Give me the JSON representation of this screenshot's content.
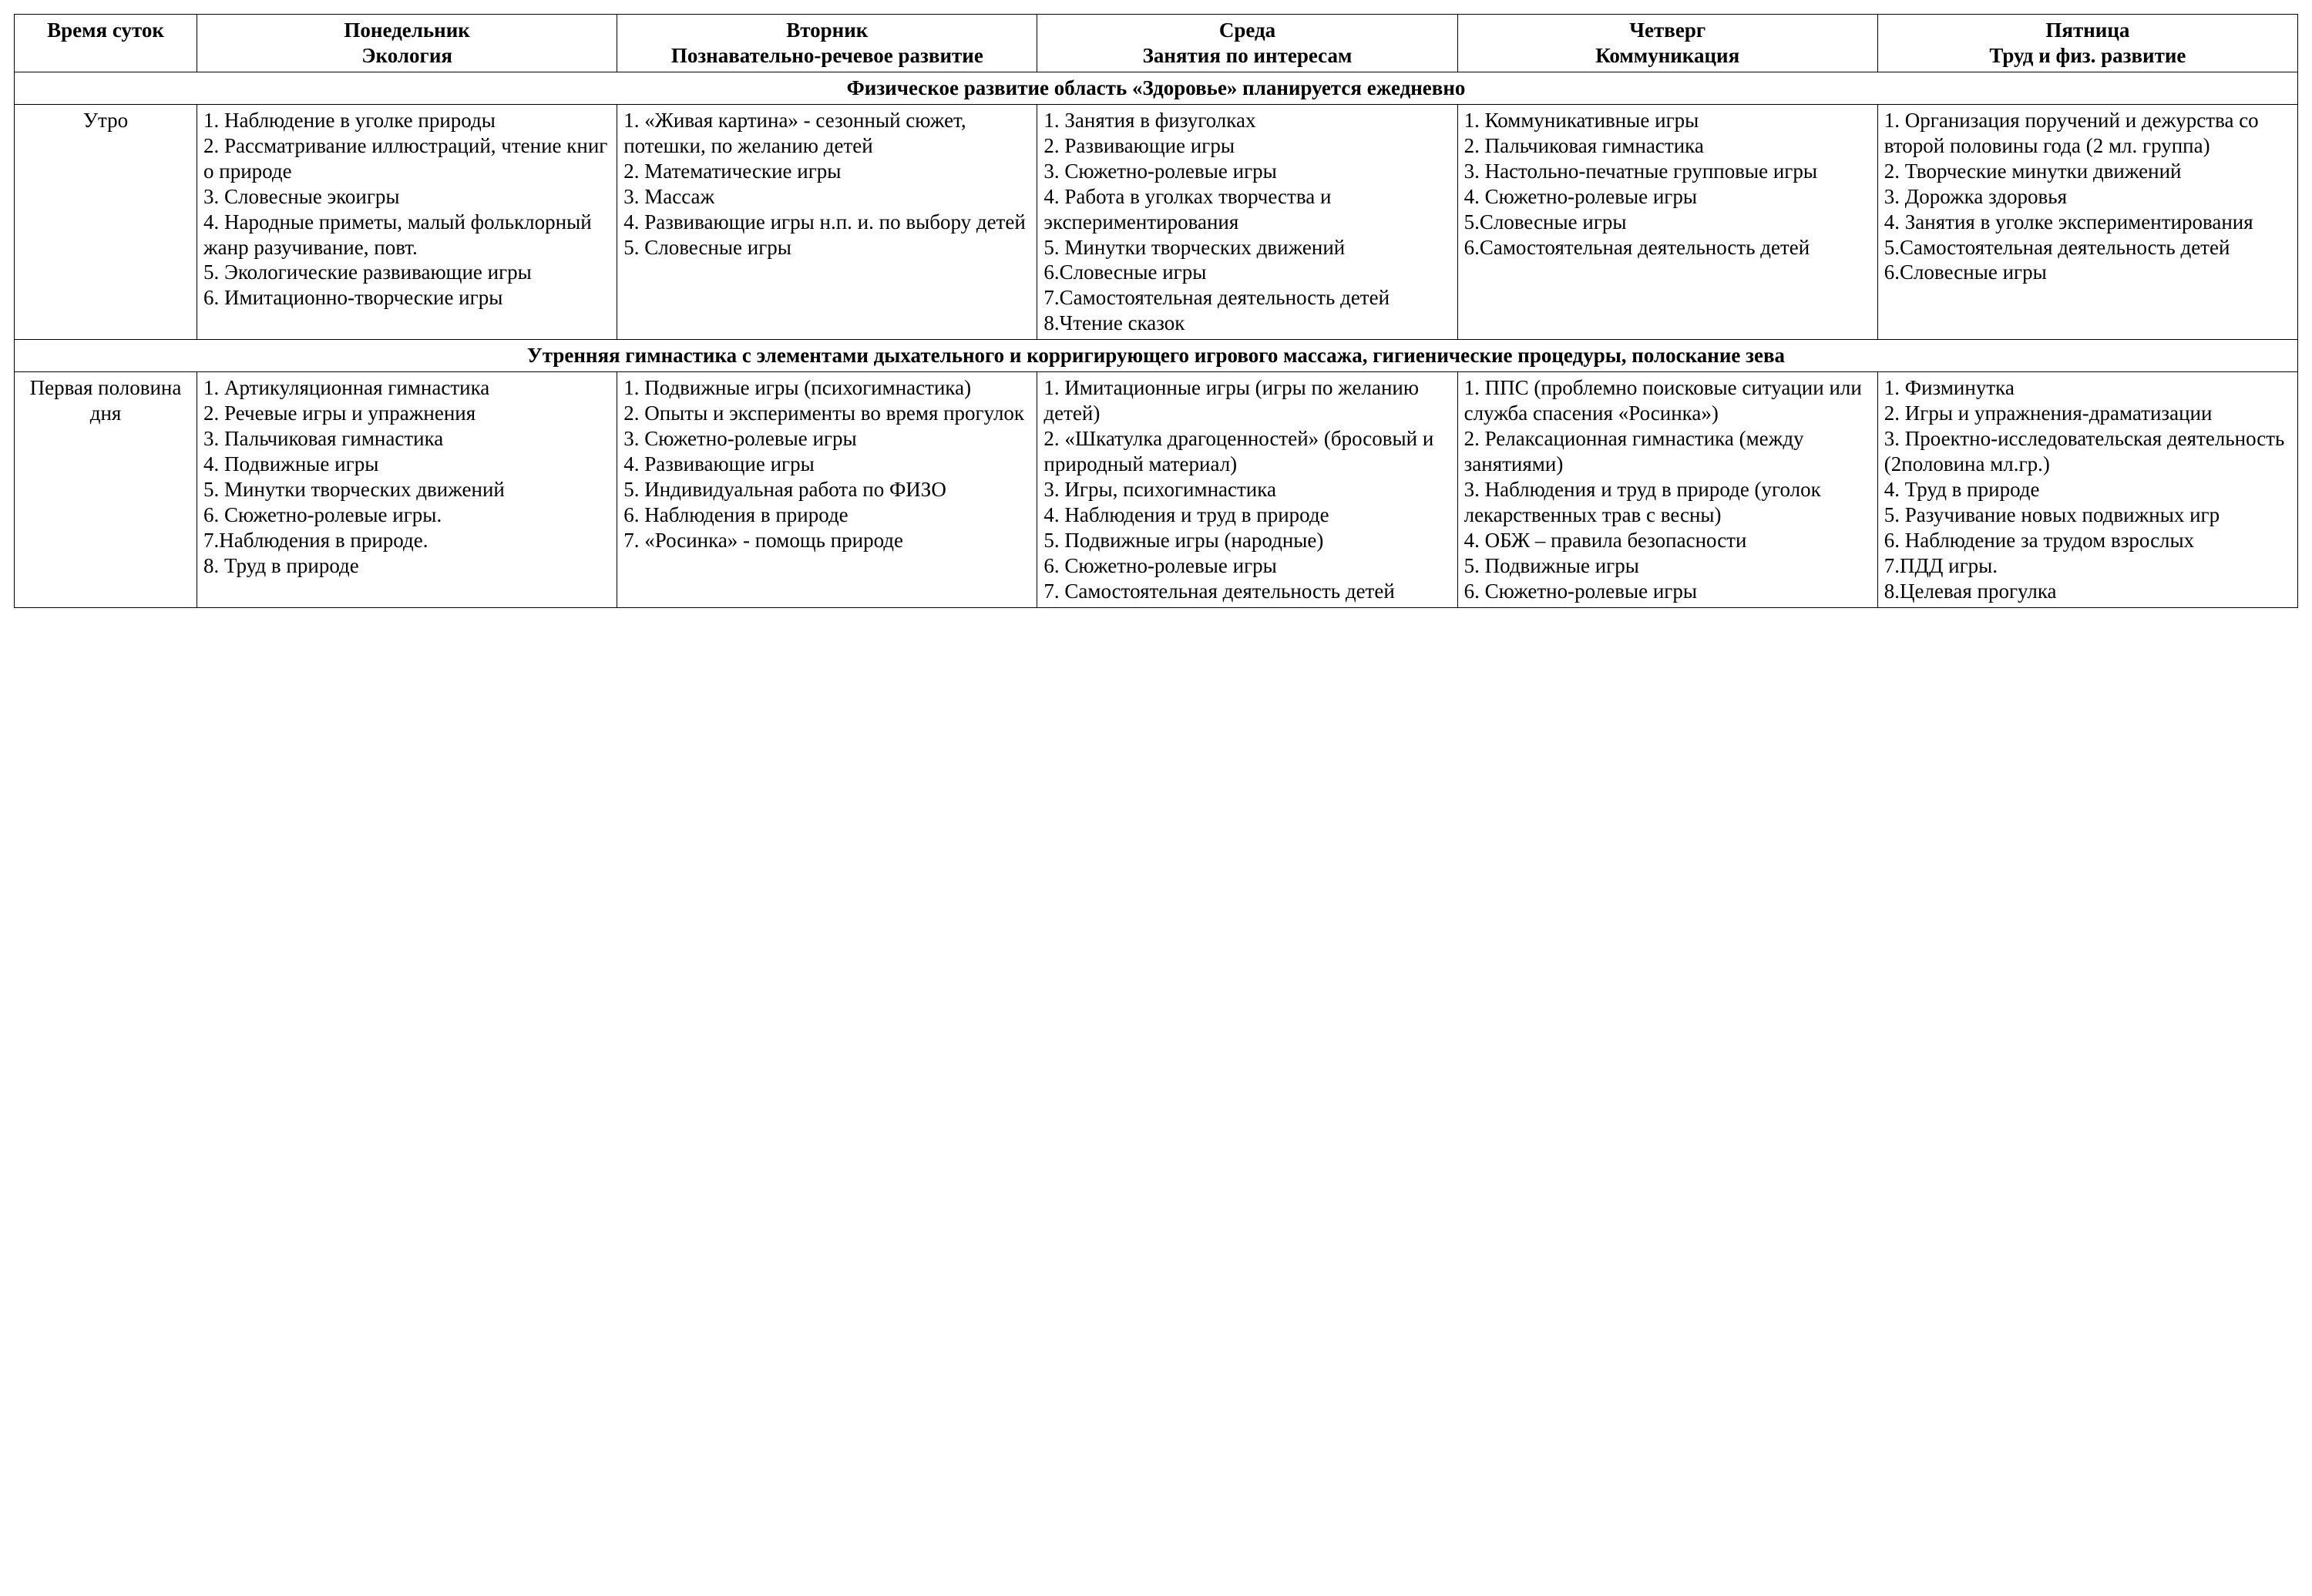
{
  "columns": {
    "time": "Время суток",
    "days": [
      {
        "main": "Понедельник",
        "sub": "Экология"
      },
      {
        "main": "Вторник",
        "sub": "Познавательно-речевое развитие"
      },
      {
        "main": "Среда",
        "sub": "Занятия по интересам"
      },
      {
        "main": "Четверг",
        "sub": "Коммуникация"
      },
      {
        "main": "Пятница",
        "sub": "Труд и физ. развитие"
      }
    ]
  },
  "section1": "Физическое развитие область «Здоровье» планируется ежедневно",
  "section2": "Утренняя гимнастика с элементами дыхательного и корригирующего игрового массажа, гигиенические процедуры, полоскание зева",
  "rows": {
    "morning": {
      "label": "Утро",
      "cells": [
        "1. Наблюдение в уголке природы\n2. Рассматривание иллюстраций, чтение книг о природе\n3. Словесные экоигры\n4. Народные приметы, малый фольклорный жанр разучивание, повт.\n5. Экологические развивающие игры\n6. Имитационно-творческие игры",
        "1. «Живая картина» - сезонный сюжет, потешки, по желанию детей\n2. Математические игры\n3. Массаж\n4. Развивающие игры н.п. и. по выбору детей\n5. Словесные игры",
        "1. Занятия в физуголках\n2. Развивающие игры\n3. Сюжетно-ролевые игры\n4. Работа в уголках творчества и экспериментирования\n5. Минутки творческих движений\n6.Словесные игры\n7.Самостоятельная деятельность детей\n8.Чтение сказок",
        "1. Коммуникативные игры\n2. Пальчиковая гимнастика\n3. Настольно-печатные групповые игры\n4. Сюжетно-ролевые игры\n5.Словесные игры\n6.Самостоятельная деятельность детей",
        "1. Организация поручений и дежурства со второй половины года (2 мл. группа)\n2. Творческие минутки движений\n3. Дорожка здоровья\n4. Занятия в уголке экспериментирования\n5.Самостоятельная деятельность детей\n6.Словесные игры"
      ]
    },
    "first_half": {
      "label": "Первая половина дня",
      "cells": [
        "1. Артикуляционная гимнастика\n2. Речевые игры и упражнения\n3. Пальчиковая гимнастика\n4. Подвижные игры\n5. Минутки творческих движений\n6. Сюжетно-ролевые игры.\n7.Наблюдения в природе.\n8. Труд в природе",
        "1. Подвижные игры (психогимнастика)\n2. Опыты и эксперименты во время прогулок\n3. Сюжетно-ролевые игры\n4. Развивающие игры\n5. Индивидуальная работа по ФИЗО\n6. Наблюдения в природе\n7. «Росинка» - помощь природе",
        "1. Имитационные игры (игры по желанию детей)\n2. «Шкатулка драгоценностей» (бросовый и природный материал)\n3. Игры, психогимнастика\n4. Наблюдения и труд в природе\n5. Подвижные игры (народные)\n6. Сюжетно-ролевые игры\n7. Самостоятельная деятельность детей",
        "1. ППС (проблемно поисковые ситуации или служба спасения «Росинка»)\n2. Релаксационная гимнастика (между занятиями)\n3. Наблюдения и труд в природе (уголок лекарственных трав с весны)\n4. ОБЖ – правила безопасности\n5. Подвижные игры\n6. Сюжетно-ролевые игры",
        "1. Физминутка\n2. Игры и упражнения-драматизации\n3. Проектно-исследовательская деятельность (2половина мл.гр.)\n4. Труд в природе\n5. Разучивание новых подвижных игр\n6. Наблюдение за трудом взрослых\n7.ПДД игры.\n8.Целевая прогулка"
      ]
    }
  }
}
